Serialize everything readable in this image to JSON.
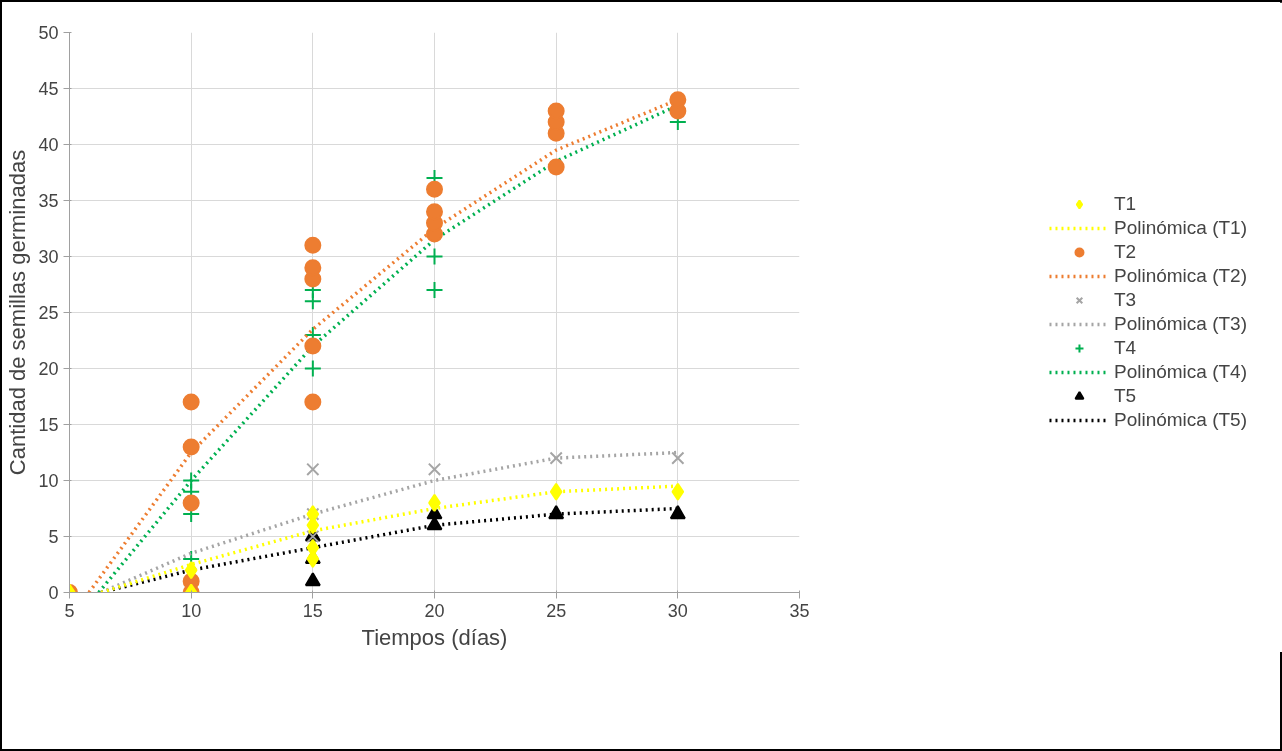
{
  "chart_data": {
    "type": "scatter",
    "xlabel": "Tiempos (días)",
    "ylabel": "Cantidad de semillas germinadas",
    "xlim": [
      5,
      35
    ],
    "xticks": [
      5,
      10,
      15,
      20,
      25,
      30,
      35
    ],
    "ylim": [
      0,
      50
    ],
    "yticks": [
      0,
      5,
      10,
      15,
      20,
      25,
      30,
      35,
      40,
      45,
      50
    ],
    "grid": true,
    "legend": "right",
    "series": [
      {
        "name": "T1",
        "marker": "diamond",
        "color": "#ffff00",
        "x": [
          5,
          10,
          10,
          15,
          15,
          15,
          15,
          20,
          25,
          30
        ],
        "values": [
          0,
          0,
          2,
          3,
          4,
          6,
          7,
          8,
          9,
          9
        ]
      },
      {
        "name": "Polinómica (T1)",
        "type": "line",
        "line_style": "dotted",
        "color": "#ffff00",
        "x": [
          6.3,
          10,
          15,
          20,
          25,
          30
        ],
        "values": [
          0,
          2.5,
          5.5,
          7.5,
          9,
          9.5
        ]
      },
      {
        "name": "T2",
        "marker": "circle",
        "color": "#ed7d31",
        "x": [
          5,
          10,
          10,
          10,
          10,
          10,
          15,
          15,
          15,
          15,
          15,
          20,
          20,
          20,
          20,
          25,
          25,
          25,
          25,
          30,
          30
        ],
        "values": [
          0,
          0,
          1,
          8,
          13,
          17,
          17,
          22,
          28,
          29,
          31,
          32,
          33,
          34,
          36,
          38,
          41,
          42,
          43,
          43,
          44
        ]
      },
      {
        "name": "Polinómica (T2)",
        "type": "line",
        "line_style": "dotted",
        "color": "#ed7d31",
        "x": [
          5.8,
          10,
          15,
          20,
          25,
          30
        ],
        "values": [
          0,
          12.5,
          23.5,
          32.5,
          39.5,
          44
        ]
      },
      {
        "name": "T3",
        "marker": "cross",
        "color": "#a5a5a5",
        "x": [
          15,
          15,
          15,
          20,
          25,
          30
        ],
        "values": [
          5,
          7,
          11,
          11,
          12,
          12
        ]
      },
      {
        "name": "Polinómica (T3)",
        "type": "line",
        "line_style": "dotted",
        "color": "#a5a5a5",
        "x": [
          6.3,
          10,
          15,
          20,
          25,
          30
        ],
        "values": [
          0,
          3.5,
          7,
          10,
          12,
          12.5
        ]
      },
      {
        "name": "T4",
        "marker": "plus",
        "color": "#00b050",
        "x": [
          10,
          10,
          10,
          10,
          15,
          15,
          15,
          15,
          20,
          20,
          20,
          30
        ],
        "values": [
          3,
          7,
          9,
          10,
          20,
          23,
          26,
          27,
          27,
          30,
          37,
          42
        ]
      },
      {
        "name": "Polinómica (T4)",
        "type": "line",
        "line_style": "dotted",
        "color": "#00b050",
        "x": [
          6.2,
          10,
          15,
          20,
          25,
          30
        ],
        "values": [
          0,
          10,
          22,
          31.5,
          38.5,
          43.5
        ]
      },
      {
        "name": "T5",
        "marker": "triangle",
        "color": "#000000",
        "x": [
          15,
          15,
          15,
          20,
          20,
          25,
          30
        ],
        "values": [
          1,
          3,
          5,
          6,
          7,
          7,
          7
        ]
      },
      {
        "name": "Polinómica (T5)",
        "type": "line",
        "line_style": "dotted",
        "color": "#000000",
        "x": [
          6.3,
          10,
          15,
          20,
          25,
          30
        ],
        "values": [
          0,
          2,
          4,
          6,
          7,
          7.5
        ]
      }
    ]
  }
}
